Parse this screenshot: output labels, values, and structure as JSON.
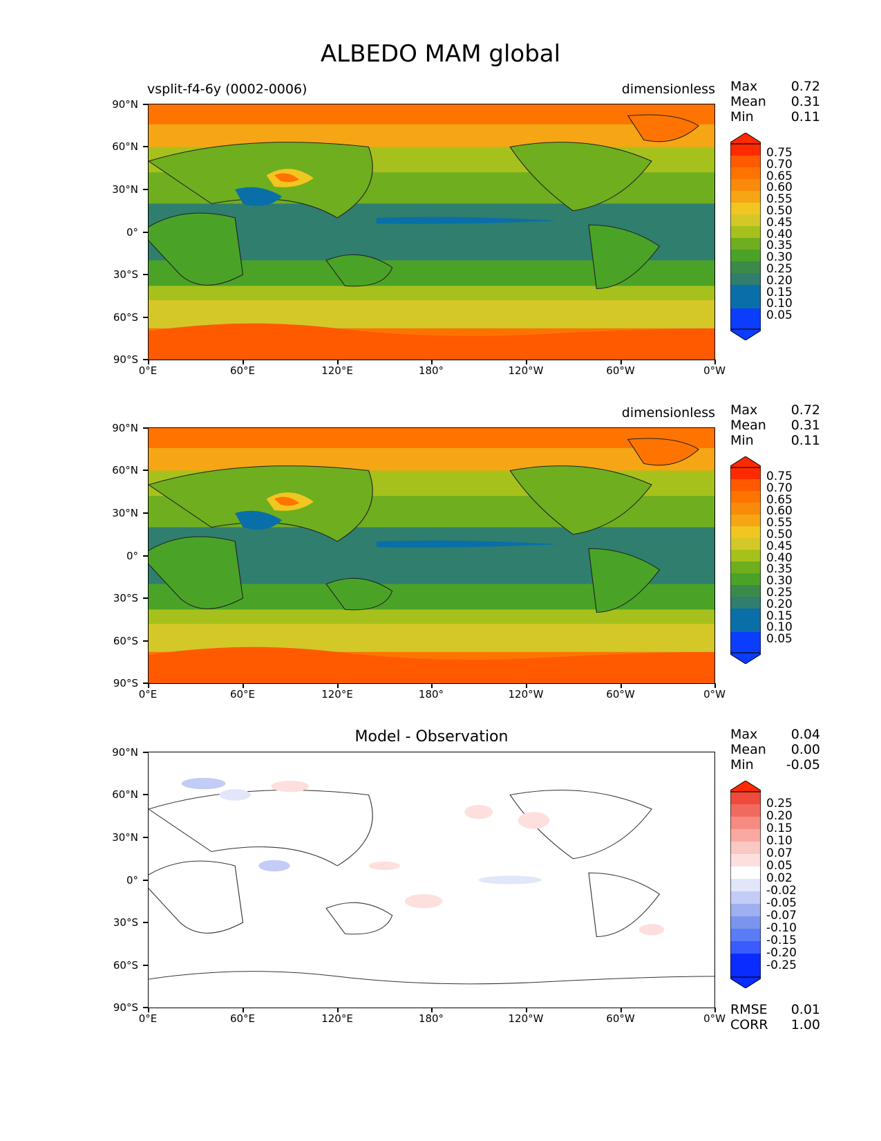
{
  "title": "ALBEDO MAM global",
  "axes": {
    "lat_labels": [
      "90°N",
      "60°N",
      "30°N",
      "0°",
      "30°S",
      "60°S",
      "90°S"
    ],
    "lon_labels": [
      "0°E",
      "60°E",
      "120°E",
      "180°",
      "120°W",
      "60°W",
      "0°W"
    ]
  },
  "panels": [
    {
      "left_label": "vsplit-f4-6y (0002-0006)",
      "center_label": "",
      "right_label": "dimensionless",
      "stats": {
        "max_label": "Max",
        "max": "0.72",
        "mean_label": "Mean",
        "mean": "0.31",
        "min_label": "Min",
        "min": "0.11"
      },
      "colorbar": {
        "ticks": [
          "0.75",
          "0.70",
          "0.65",
          "0.60",
          "0.55",
          "0.50",
          "0.45",
          "0.40",
          "0.35",
          "0.30",
          "0.25",
          "0.20",
          "0.15",
          "0.10",
          "0.05"
        ]
      }
    },
    {
      "left_label": "",
      "center_label": "",
      "right_label": "dimensionless",
      "stats": {
        "max_label": "Max",
        "max": "0.72",
        "mean_label": "Mean",
        "mean": "0.31",
        "min_label": "Min",
        "min": "0.11"
      },
      "colorbar": {
        "ticks": [
          "0.75",
          "0.70",
          "0.65",
          "0.60",
          "0.55",
          "0.50",
          "0.45",
          "0.40",
          "0.35",
          "0.30",
          "0.25",
          "0.20",
          "0.15",
          "0.10",
          "0.05"
        ]
      }
    },
    {
      "left_label": "",
      "center_label": "Model - Observation",
      "right_label": "",
      "stats": {
        "max_label": "Max",
        "max": "0.04",
        "mean_label": "Mean",
        "mean": "0.00",
        "min_label": "Min",
        "min": "-0.05"
      },
      "colorbar": {
        "ticks": [
          "0.25",
          "0.20",
          "0.15",
          "0.10",
          "0.07",
          "0.05",
          "0.02",
          "-0.02",
          "-0.05",
          "-0.07",
          "-0.10",
          "-0.15",
          "-0.20",
          "-0.25"
        ]
      },
      "metrics": {
        "rmse_label": "RMSE",
        "rmse": "0.01",
        "corr_label": "CORR",
        "corr": "1.00"
      }
    }
  ],
  "colors": {
    "field_scale": [
      "#0b3dff",
      "#0a6fa8",
      "#2f7e6e",
      "#3c8a4a",
      "#4aa327",
      "#6fae1f",
      "#a7c11c",
      "#d4c828",
      "#f1c621",
      "#f6a514",
      "#fa8b0a",
      "#ff7400",
      "#ff5a00",
      "#ff2a00"
    ],
    "diff_scale": [
      "#0a2cff",
      "#3a5bff",
      "#5a7cf4",
      "#7b95ef",
      "#9fb0f1",
      "#c3ccf6",
      "#e2e6fb",
      "#ffffff",
      "#fde0de",
      "#fbc7c3",
      "#f9a9a2",
      "#f68b82",
      "#f26a5f",
      "#ef4a3b",
      "#ff2a00"
    ]
  }
}
